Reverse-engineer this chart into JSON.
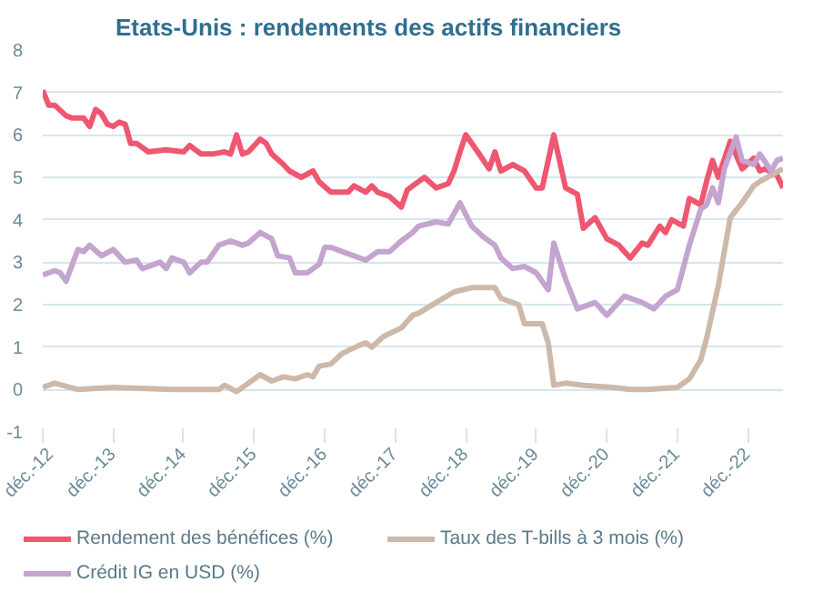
{
  "chart_data": {
    "type": "line",
    "title": "Etats-Unis : rendements des actifs financiers",
    "xlim": [
      "2012-12",
      "2023-06"
    ],
    "xticks": [
      {
        "value": "2012-12",
        "label": "déc.-12"
      },
      {
        "value": "2013-12",
        "label": "déc.-13"
      },
      {
        "value": "2014-12",
        "label": "déc.-14"
      },
      {
        "value": "2015-12",
        "label": "déc.-15"
      },
      {
        "value": "2016-12",
        "label": "déc.-16"
      },
      {
        "value": "2017-12",
        "label": "déc.-17"
      },
      {
        "value": "2018-12",
        "label": "déc.-18"
      },
      {
        "value": "2019-12",
        "label": "déc.-19"
      },
      {
        "value": "2020-12",
        "label": "déc.-20"
      },
      {
        "value": "2021-12",
        "label": "déc.-21"
      },
      {
        "value": "2022-12",
        "label": "déc.-22"
      }
    ],
    "ylim": [
      -1,
      8
    ],
    "yticks": [
      -1,
      0,
      1,
      2,
      3,
      4,
      5,
      6,
      7,
      8
    ],
    "grid": "y",
    "legend": "bottom",
    "marker": "none",
    "line_style": "solid",
    "series": [
      {
        "name": "Rendement des bénéfices (%)",
        "color": "#ef5670",
        "x": [
          "2012-12",
          "2013-01",
          "2013-02",
          "2013-04",
          "2013-05",
          "2013-07",
          "2013-08",
          "2013-09",
          "2013-10",
          "2013-11",
          "2013-12",
          "2014-01",
          "2014-02",
          "2014-03",
          "2014-04",
          "2014-06",
          "2014-09",
          "2014-12",
          "2015-01",
          "2015-03",
          "2015-05",
          "2015-07",
          "2015-08",
          "2015-09",
          "2015-10",
          "2015-11",
          "2016-01",
          "2016-02",
          "2016-03",
          "2016-05",
          "2016-06",
          "2016-08",
          "2016-10",
          "2016-11",
          "2017-01",
          "2017-04",
          "2017-05",
          "2017-07",
          "2017-08",
          "2017-09",
          "2017-11",
          "2018-01",
          "2018-02",
          "2018-03",
          "2018-04",
          "2018-05",
          "2018-07",
          "2018-09",
          "2018-10",
          "2018-11",
          "2018-12",
          "2019-02",
          "2019-04",
          "2019-05",
          "2019-06",
          "2019-08",
          "2019-10",
          "2019-12",
          "2020-01",
          "2020-03",
          "2020-05",
          "2020-07",
          "2020-08",
          "2020-10",
          "2020-12",
          "2021-02",
          "2021-04",
          "2021-06",
          "2021-07",
          "2021-09",
          "2021-10",
          "2021-11",
          "2022-01",
          "2022-02",
          "2022-04",
          "2022-05",
          "2022-06",
          "2022-07",
          "2022-09",
          "2022-11",
          "2023-01",
          "2023-02",
          "2023-03",
          "2023-05",
          "2023-06"
        ],
        "values": [
          7.05,
          6.7,
          6.7,
          6.45,
          6.4,
          6.4,
          6.2,
          6.6,
          6.5,
          6.25,
          6.2,
          6.3,
          6.25,
          5.8,
          5.8,
          5.6,
          5.65,
          5.6,
          5.75,
          5.55,
          5.55,
          5.6,
          5.55,
          6.0,
          5.55,
          5.6,
          5.9,
          5.8,
          5.55,
          5.3,
          5.15,
          5.0,
          5.15,
          4.9,
          4.65,
          4.65,
          4.8,
          4.65,
          4.8,
          4.65,
          4.55,
          4.3,
          4.7,
          4.8,
          4.9,
          5.0,
          4.75,
          4.85,
          5.15,
          5.6,
          6.0,
          5.6,
          5.2,
          5.6,
          5.15,
          5.3,
          5.15,
          4.75,
          4.75,
          6.0,
          4.75,
          4.6,
          3.8,
          4.05,
          3.55,
          3.4,
          3.1,
          3.45,
          3.4,
          3.85,
          3.7,
          4.0,
          3.85,
          4.5,
          4.35,
          4.9,
          5.4,
          5.0,
          5.85,
          5.2,
          5.45,
          5.15,
          5.2,
          5.05,
          4.75
        ]
      },
      {
        "name": "Taux des T-bills à 3 mois (%)",
        "color": "#cdb9aa",
        "x": [
          "2012-12",
          "2013-02",
          "2013-06",
          "2013-12",
          "2014-10",
          "2015-06",
          "2015-07",
          "2015-09",
          "2015-11",
          "2016-01",
          "2016-03",
          "2016-05",
          "2016-07",
          "2016-09",
          "2016-10",
          "2016-11",
          "2017-01",
          "2017-03",
          "2017-06",
          "2017-07",
          "2017-08",
          "2017-10",
          "2018-01",
          "2018-03",
          "2018-04",
          "2018-07",
          "2018-10",
          "2019-01",
          "2019-05",
          "2019-06",
          "2019-09",
          "2019-10",
          "2020-01",
          "2020-02",
          "2020-03",
          "2020-05",
          "2020-08",
          "2021-01",
          "2021-04",
          "2021-07",
          "2021-12",
          "2022-02",
          "2022-04",
          "2022-05",
          "2022-07",
          "2022-09",
          "2022-11",
          "2023-01",
          "2023-02",
          "2023-04",
          "2023-06"
        ],
        "values": [
          0.05,
          0.15,
          0.0,
          0.05,
          0.0,
          0.0,
          0.1,
          -0.05,
          0.15,
          0.35,
          0.2,
          0.3,
          0.25,
          0.35,
          0.3,
          0.55,
          0.6,
          0.85,
          1.05,
          1.1,
          1.0,
          1.25,
          1.45,
          1.75,
          1.8,
          2.05,
          2.3,
          2.4,
          2.4,
          2.15,
          2.0,
          1.55,
          1.55,
          1.1,
          0.1,
          0.15,
          0.1,
          0.05,
          0.0,
          0.0,
          0.05,
          0.25,
          0.7,
          1.2,
          2.45,
          4.05,
          4.4,
          4.8,
          4.9,
          5.05,
          5.2
        ]
      },
      {
        "name": "Crédit IG en USD (%)",
        "color": "#c3a5cf",
        "x": [
          "2012-12",
          "2013-02",
          "2013-03",
          "2013-04",
          "2013-06",
          "2013-07",
          "2013-08",
          "2013-10",
          "2013-12",
          "2014-02",
          "2014-04",
          "2014-05",
          "2014-08",
          "2014-09",
          "2014-10",
          "2014-12",
          "2015-01",
          "2015-03",
          "2015-04",
          "2015-06",
          "2015-08",
          "2015-10",
          "2015-11",
          "2016-01",
          "2016-03",
          "2016-04",
          "2016-06",
          "2016-07",
          "2016-09",
          "2016-11",
          "2016-12",
          "2017-01",
          "2017-03",
          "2017-05",
          "2017-07",
          "2017-09",
          "2017-11",
          "2018-01",
          "2018-03",
          "2018-04",
          "2018-07",
          "2018-09",
          "2018-11",
          "2019-01",
          "2019-03",
          "2019-05",
          "2019-06",
          "2019-08",
          "2019-10",
          "2019-12",
          "2020-02",
          "2020-03",
          "2020-05",
          "2020-07",
          "2020-10",
          "2020-12",
          "2021-03",
          "2021-06",
          "2021-08",
          "2021-10",
          "2021-12",
          "2022-02",
          "2022-04",
          "2022-05",
          "2022-06",
          "2022-07",
          "2022-08",
          "2022-10",
          "2022-11",
          "2023-01",
          "2023-02",
          "2023-04",
          "2023-05",
          "2023-06"
        ],
        "values": [
          2.7,
          2.8,
          2.75,
          2.55,
          3.3,
          3.25,
          3.4,
          3.15,
          3.3,
          3.0,
          3.05,
          2.85,
          3.0,
          2.85,
          3.1,
          3.0,
          2.75,
          3.0,
          3.0,
          3.4,
          3.5,
          3.4,
          3.45,
          3.7,
          3.55,
          3.15,
          3.1,
          2.75,
          2.75,
          2.95,
          3.35,
          3.35,
          3.25,
          3.15,
          3.05,
          3.25,
          3.25,
          3.5,
          3.7,
          3.85,
          3.95,
          3.9,
          4.4,
          3.85,
          3.6,
          3.4,
          3.1,
          2.85,
          2.9,
          2.75,
          2.35,
          3.45,
          2.6,
          1.9,
          2.05,
          1.75,
          2.2,
          2.05,
          1.9,
          2.2,
          2.35,
          3.4,
          4.25,
          4.35,
          4.75,
          4.4,
          5.2,
          5.95,
          5.4,
          5.3,
          5.55,
          5.15,
          5.4,
          5.45
        ]
      }
    ]
  }
}
